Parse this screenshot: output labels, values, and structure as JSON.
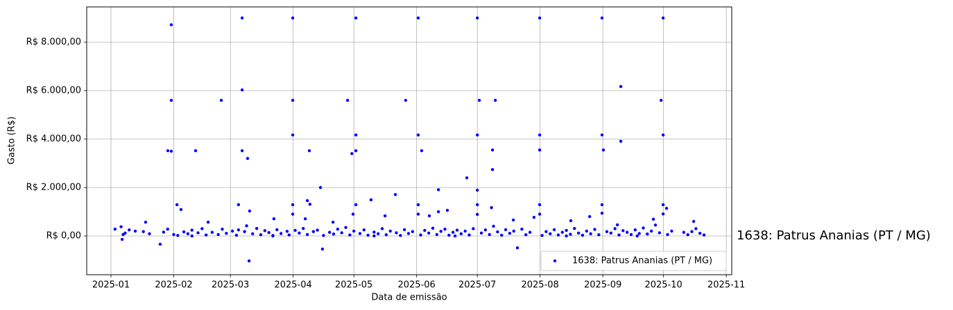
{
  "chart_data": {
    "type": "scatter",
    "xlabel": "Data de emissão",
    "ylabel": "Gasto (R$)",
    "xlim": [
      -12,
      306.7
    ],
    "ylim": [
      -1600,
      9457
    ],
    "xticks": [
      {
        "value": 0,
        "label": "2025-01"
      },
      {
        "value": 31,
        "label": "2025-02"
      },
      {
        "value": 59,
        "label": "2025-03"
      },
      {
        "value": 90,
        "label": "2025-04"
      },
      {
        "value": 120,
        "label": "2025-05"
      },
      {
        "value": 151,
        "label": "2025-06"
      },
      {
        "value": 181,
        "label": "2025-07"
      },
      {
        "value": 212,
        "label": "2025-08"
      },
      {
        "value": 243,
        "label": "2025-09"
      },
      {
        "value": 273,
        "label": "2025-10"
      },
      {
        "value": 304,
        "label": "2025-11"
      }
    ],
    "yticks": [
      {
        "value": 0,
        "label": "R$ 0,00"
      },
      {
        "value": 2000,
        "label": "R$ 2.000,00"
      },
      {
        "value": 4000,
        "label": "R$ 4.000,00"
      },
      {
        "value": 6000,
        "label": "R$ 6.000,00"
      },
      {
        "value": 8000,
        "label": "R$ 8.000,00"
      }
    ],
    "grid": true,
    "legend": "lower right",
    "annotations": [
      {
        "text": "1638: Patrus Ananias (PT / MG)",
        "color": "#0000ff"
      }
    ],
    "x": [
      64.8,
      29.8,
      89.8,
      121,
      151.8,
      181,
      211.8,
      242.6,
      272.8,
      29.8,
      54.5,
      64.8,
      89.8,
      116.9,
      145.6,
      182,
      189.9,
      251.9,
      271.8,
      89.8,
      121,
      151.8,
      181,
      211.8,
      242.6,
      272.8,
      28.1,
      29.8,
      41.8,
      64.8,
      98,
      119,
      121,
      153.5,
      188.5,
      211.8,
      243.3,
      67.5,
      251.9,
      175.8,
      188.5,
      181,
      161.8,
      103.5,
      140.5,
      128.5,
      32.6,
      34.6,
      63,
      68.5,
      89.8,
      97,
      98.3,
      121,
      151.8,
      181,
      188,
      211.8,
      242.6,
      272.8,
      274.5,
      68.2,
      104.5,
      200.8,
      24.3,
      5.5,
      181,
      242.6,
      272.8,
      89.8,
      151.8,
      211.8,
      119.6,
      17.1,
      48,
      80.5,
      96,
      109.7,
      135.4,
      157.3,
      166.2,
      198.8,
      209,
      227.2,
      236.5,
      250.2,
      268,
      287.9,
      161.8,
      2,
      5,
      6,
      7,
      9,
      12,
      16,
      19,
      26,
      28,
      31,
      33,
      36,
      38,
      40,
      43,
      45,
      47,
      50,
      53,
      55,
      57,
      60,
      62,
      63,
      66,
      67,
      70,
      72,
      74,
      76,
      78,
      80,
      82,
      84,
      87,
      88,
      91,
      93,
      95,
      97,
      100,
      102,
      105,
      108,
      110,
      112,
      114,
      116,
      118,
      120,
      123,
      125,
      127,
      130,
      132,
      134,
      136,
      138,
      141,
      143,
      145,
      147,
      149,
      153,
      155,
      157,
      159,
      161,
      163,
      165,
      167,
      169,
      171,
      173,
      175,
      177,
      179,
      183,
      185,
      187,
      189,
      191,
      193,
      195,
      197,
      199,
      203,
      205,
      207,
      213,
      215,
      217,
      219,
      221,
      223,
      225,
      227,
      229,
      231,
      233,
      235,
      237,
      239,
      241,
      245,
      247,
      249,
      251,
      253,
      255,
      257,
      259,
      261,
      263,
      265,
      267,
      269,
      271,
      275,
      277,
      283,
      285,
      287,
      289,
      291,
      293,
      40,
      80,
      130,
      170,
      225,
      260
    ],
    "series": [
      {
        "name": "1638: Patrus Ananias (PT / MG)",
        "color": "#0000ff",
        "values": [
          9000,
          8720,
          9000,
          9000,
          9000,
          9000,
          9000,
          9000,
          9000,
          5600,
          5600,
          6030,
          5600,
          5600,
          5600,
          5600,
          5600,
          6170,
          5600,
          4170,
          4170,
          4170,
          4170,
          4170,
          4170,
          4170,
          3520,
          3500,
          3520,
          3520,
          3520,
          3400,
          3520,
          3520,
          3550,
          3550,
          3550,
          3200,
          3910,
          2400,
          2740,
          1890,
          1910,
          2000,
          1710,
          1490,
          1290,
          1090,
          1290,
          1030,
          1290,
          1460,
          1310,
          1290,
          1290,
          1290,
          1170,
          1290,
          1290,
          1290,
          1140,
          -1030,
          -540,
          -490,
          -340,
          -140,
          890,
          940,
          910,
          900,
          900,
          900,
          900,
          570,
          570,
          710,
          710,
          570,
          830,
          830,
          1060,
          660,
          770,
          630,
          800,
          460,
          690,
          600,
          1000,
          280,
          380,
          60,
          120,
          250,
          200,
          180,
          90,
          160,
          280,
          60,
          20,
          170,
          90,
          240,
          130,
          300,
          40,
          150,
          60,
          280,
          110,
          200,
          30,
          250,
          180,
          420,
          90,
          310,
          50,
          220,
          140,
          20,
          260,
          100,
          190,
          40,
          230,
          120,
          310,
          60,
          180,
          240,
          20,
          150,
          80,
          280,
          130,
          350,
          40,
          200,
          100,
          250,
          30,
          160,
          90,
          300,
          50,
          200,
          130,
          20,
          260,
          100,
          180,
          40,
          230,
          120,
          320,
          60,
          190,
          280,
          30,
          150,
          240,
          90,
          200,
          40,
          300,
          120,
          250,
          60,
          400,
          170,
          30,
          260,
          110,
          200,
          280,
          50,
          150,
          20,
          180,
          90,
          260,
          40,
          150,
          230,
          70,
          310,
          120,
          30,
          200,
          90,
          270,
          50,
          180,
          120,
          300,
          40,
          220,
          150,
          60,
          250,
          100,
          330,
          80,
          200,
          450,
          130,
          60,
          200,
          150,
          50,
          180,
          300,
          110,
          40,
          0,
          0,
          0,
          0,
          0,
          0
        ]
      }
    ]
  }
}
